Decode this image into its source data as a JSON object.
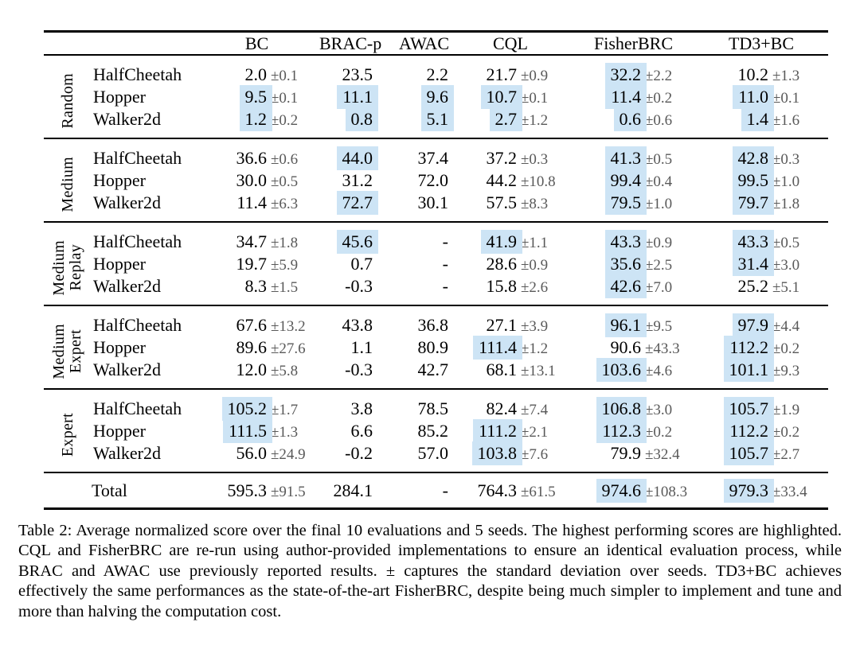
{
  "table": {
    "highlight_color": "#cde4f5",
    "columns": [
      "BC",
      "BRAC-p",
      "AWAC",
      "CQL",
      "FisherBRC",
      "TD3+BC"
    ],
    "groups": [
      {
        "label": [
          "Random"
        ],
        "rows": [
          {
            "env": "HalfCheetah",
            "cells": [
              {
                "v": "2.0",
                "s": "±0.1"
              },
              {
                "v": "23.5"
              },
              {
                "v": "2.2"
              },
              {
                "v": "21.7",
                "s": "±0.9"
              },
              {
                "v": "32.2",
                "s": "±2.2",
                "h": true
              },
              {
                "v": "10.2",
                "s": "±1.3"
              }
            ]
          },
          {
            "env": "Hopper",
            "cells": [
              {
                "v": "9.5",
                "s": "±0.1",
                "h": true
              },
              {
                "v": "11.1",
                "h": true
              },
              {
                "v": "9.6",
                "h": true
              },
              {
                "v": "10.7",
                "s": "±0.1",
                "h": true
              },
              {
                "v": "11.4",
                "s": "±0.2",
                "h": true
              },
              {
                "v": "11.0",
                "s": "±0.1",
                "h": true
              }
            ]
          },
          {
            "env": "Walker2d",
            "cells": [
              {
                "v": "1.2",
                "s": "±0.2",
                "h": true
              },
              {
                "v": "0.8",
                "h": true
              },
              {
                "v": "5.1",
                "h": true
              },
              {
                "v": "2.7",
                "s": "±1.2",
                "h": true
              },
              {
                "v": "0.6",
                "s": "±0.6",
                "h": true
              },
              {
                "v": "1.4",
                "s": "±1.6",
                "h": true
              }
            ]
          }
        ]
      },
      {
        "label": [
          "Medium"
        ],
        "rows": [
          {
            "env": "HalfCheetah",
            "cells": [
              {
                "v": "36.6",
                "s": "±0.6"
              },
              {
                "v": "44.0",
                "h": true
              },
              {
                "v": "37.4"
              },
              {
                "v": "37.2",
                "s": "±0.3"
              },
              {
                "v": "41.3",
                "s": "±0.5",
                "h": true
              },
              {
                "v": "42.8",
                "s": "±0.3",
                "h": true
              }
            ]
          },
          {
            "env": "Hopper",
            "cells": [
              {
                "v": "30.0",
                "s": "±0.5"
              },
              {
                "v": "31.2"
              },
              {
                "v": "72.0"
              },
              {
                "v": "44.2",
                "s": "±10.8"
              },
              {
                "v": "99.4",
                "s": "±0.4",
                "h": true
              },
              {
                "v": "99.5",
                "s": "±1.0",
                "h": true
              }
            ]
          },
          {
            "env": "Walker2d",
            "cells": [
              {
                "v": "11.4",
                "s": "±6.3"
              },
              {
                "v": "72.7",
                "h": true
              },
              {
                "v": "30.1"
              },
              {
                "v": "57.5",
                "s": "±8.3"
              },
              {
                "v": "79.5",
                "s": "±1.0",
                "h": true
              },
              {
                "v": "79.7",
                "s": "±1.8",
                "h": true
              }
            ]
          }
        ]
      },
      {
        "label": [
          "Medium",
          "Replay"
        ],
        "rows": [
          {
            "env": "HalfCheetah",
            "cells": [
              {
                "v": "34.7",
                "s": "±1.8"
              },
              {
                "v": "45.6",
                "h": true
              },
              {
                "v": "-"
              },
              {
                "v": "41.9",
                "s": "±1.1",
                "h": true
              },
              {
                "v": "43.3",
                "s": "±0.9",
                "h": true
              },
              {
                "v": "43.3",
                "s": "±0.5",
                "h": true
              }
            ]
          },
          {
            "env": "Hopper",
            "cells": [
              {
                "v": "19.7",
                "s": "±5.9"
              },
              {
                "v": "0.7"
              },
              {
                "v": "-"
              },
              {
                "v": "28.6",
                "s": "±0.9"
              },
              {
                "v": "35.6",
                "s": "±2.5",
                "h": true
              },
              {
                "v": "31.4",
                "s": "±3.0",
                "h": true
              }
            ]
          },
          {
            "env": "Walker2d",
            "cells": [
              {
                "v": "8.3",
                "s": "±1.5"
              },
              {
                "v": "-0.3"
              },
              {
                "v": "-"
              },
              {
                "v": "15.8",
                "s": "±2.6"
              },
              {
                "v": "42.6",
                "s": "±7.0",
                "h": true
              },
              {
                "v": "25.2",
                "s": "±5.1"
              }
            ]
          }
        ]
      },
      {
        "label": [
          "Medium",
          "Expert"
        ],
        "rows": [
          {
            "env": "HalfCheetah",
            "cells": [
              {
                "v": "67.6",
                "s": "±13.2"
              },
              {
                "v": "43.8"
              },
              {
                "v": "36.8"
              },
              {
                "v": "27.1",
                "s": "±3.9"
              },
              {
                "v": "96.1",
                "s": "±9.5",
                "h": true
              },
              {
                "v": "97.9",
                "s": "±4.4",
                "h": true
              }
            ]
          },
          {
            "env": "Hopper",
            "cells": [
              {
                "v": "89.6",
                "s": "±27.6"
              },
              {
                "v": "1.1"
              },
              {
                "v": "80.9"
              },
              {
                "v": "111.4",
                "s": "±1.2",
                "h": true
              },
              {
                "v": "90.6",
                "s": "±43.3"
              },
              {
                "v": "112.2",
                "s": "±0.2",
                "h": true
              }
            ]
          },
          {
            "env": "Walker2d",
            "cells": [
              {
                "v": "12.0",
                "s": "±5.8"
              },
              {
                "v": "-0.3"
              },
              {
                "v": "42.7"
              },
              {
                "v": "68.1",
                "s": "±13.1"
              },
              {
                "v": "103.6",
                "s": "±4.6",
                "h": true
              },
              {
                "v": "101.1",
                "s": "±9.3",
                "h": true
              }
            ]
          }
        ]
      },
      {
        "label": [
          "Expert"
        ],
        "rows": [
          {
            "env": "HalfCheetah",
            "cells": [
              {
                "v": "105.2",
                "s": "±1.7",
                "h": true
              },
              {
                "v": "3.8"
              },
              {
                "v": "78.5"
              },
              {
                "v": "82.4",
                "s": "±7.4"
              },
              {
                "v": "106.8",
                "s": "±3.0",
                "h": true
              },
              {
                "v": "105.7",
                "s": "±1.9",
                "h": true
              }
            ]
          },
          {
            "env": "Hopper",
            "cells": [
              {
                "v": "111.5",
                "s": "±1.3",
                "h": true
              },
              {
                "v": "6.6"
              },
              {
                "v": "85.2"
              },
              {
                "v": "111.2",
                "s": "±2.1",
                "h": true
              },
              {
                "v": "112.3",
                "s": "±0.2",
                "h": true
              },
              {
                "v": "112.2",
                "s": "±0.2",
                "h": true
              }
            ]
          },
          {
            "env": "Walker2d",
            "cells": [
              {
                "v": "56.0",
                "s": "±24.9"
              },
              {
                "v": "-0.2"
              },
              {
                "v": "57.0"
              },
              {
                "v": "103.8",
                "s": "±7.6",
                "h": true
              },
              {
                "v": "79.9",
                "s": "±32.4"
              },
              {
                "v": "105.7",
                "s": "±2.7",
                "h": true
              }
            ]
          }
        ]
      }
    ],
    "total": {
      "label": "Total",
      "cells": [
        {
          "v": "595.3",
          "s": "±91.5"
        },
        {
          "v": "284.1"
        },
        {
          "v": "-"
        },
        {
          "v": "764.3",
          "s": "±61.5"
        },
        {
          "v": "974.6",
          "s": "±108.3",
          "h": true
        },
        {
          "v": "979.3",
          "s": "±33.4",
          "h": true
        }
      ]
    }
  },
  "caption": "Table 2: Average normalized score over the final 10 evaluations and 5 seeds. The highest performing scores are highlighted. CQL and FisherBRC are re-run using author-provided implementations to ensure an identical evaluation process, while BRAC and AWAC use previously reported results. ± captures the standard deviation over seeds. TD3+BC achieves effectively the same performances as the state-of-the-art FisherBRC, despite being much simpler to implement and tune and more than halving the computation cost."
}
